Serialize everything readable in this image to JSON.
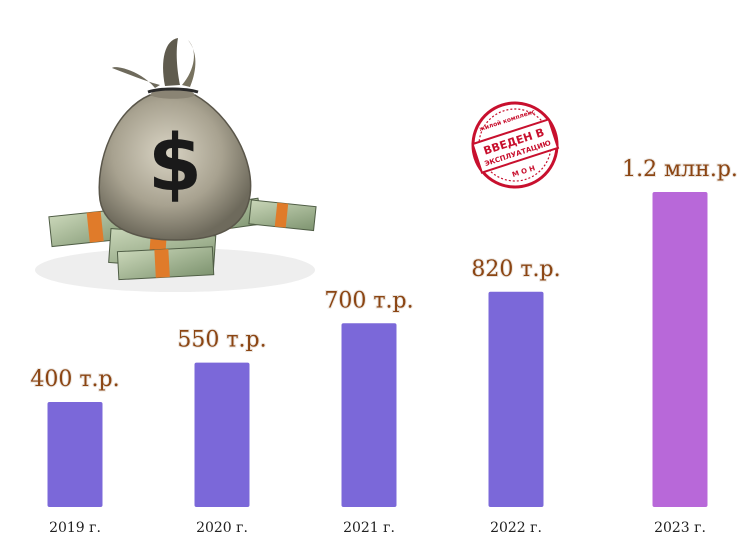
{
  "chart_data": {
    "type": "bar",
    "title": "",
    "xlabel": "",
    "ylabel": "",
    "categories": [
      "2019 г.",
      "2020 г.",
      "2021 г.",
      "2022 г.",
      "2023 г."
    ],
    "values": [
      400,
      550,
      700,
      820,
      1200
    ],
    "value_labels": [
      "400 т.р.",
      "550 т.р.",
      "700 т.р.",
      "820 т.р.",
      "1.2 млн.р."
    ],
    "ylim": [
      0,
      1200
    ],
    "grid": false,
    "legend": "none",
    "bar_colors": [
      "#7b68d9",
      "#7b68d9",
      "#7b68d9",
      "#7b68d9",
      "#b868d9"
    ],
    "label_color": "#8b4513"
  },
  "decor": {
    "money_bag_icon": "money-bag-with-banknotes",
    "bag_symbol": "$",
    "stamp": {
      "top_text": "жилой комплекс",
      "line1": "ВВЕДЕН В",
      "line2": "ЭКСПЛУАТАЦИЮ",
      "bottom_text": "М О Н",
      "color": "#c8102e"
    }
  }
}
